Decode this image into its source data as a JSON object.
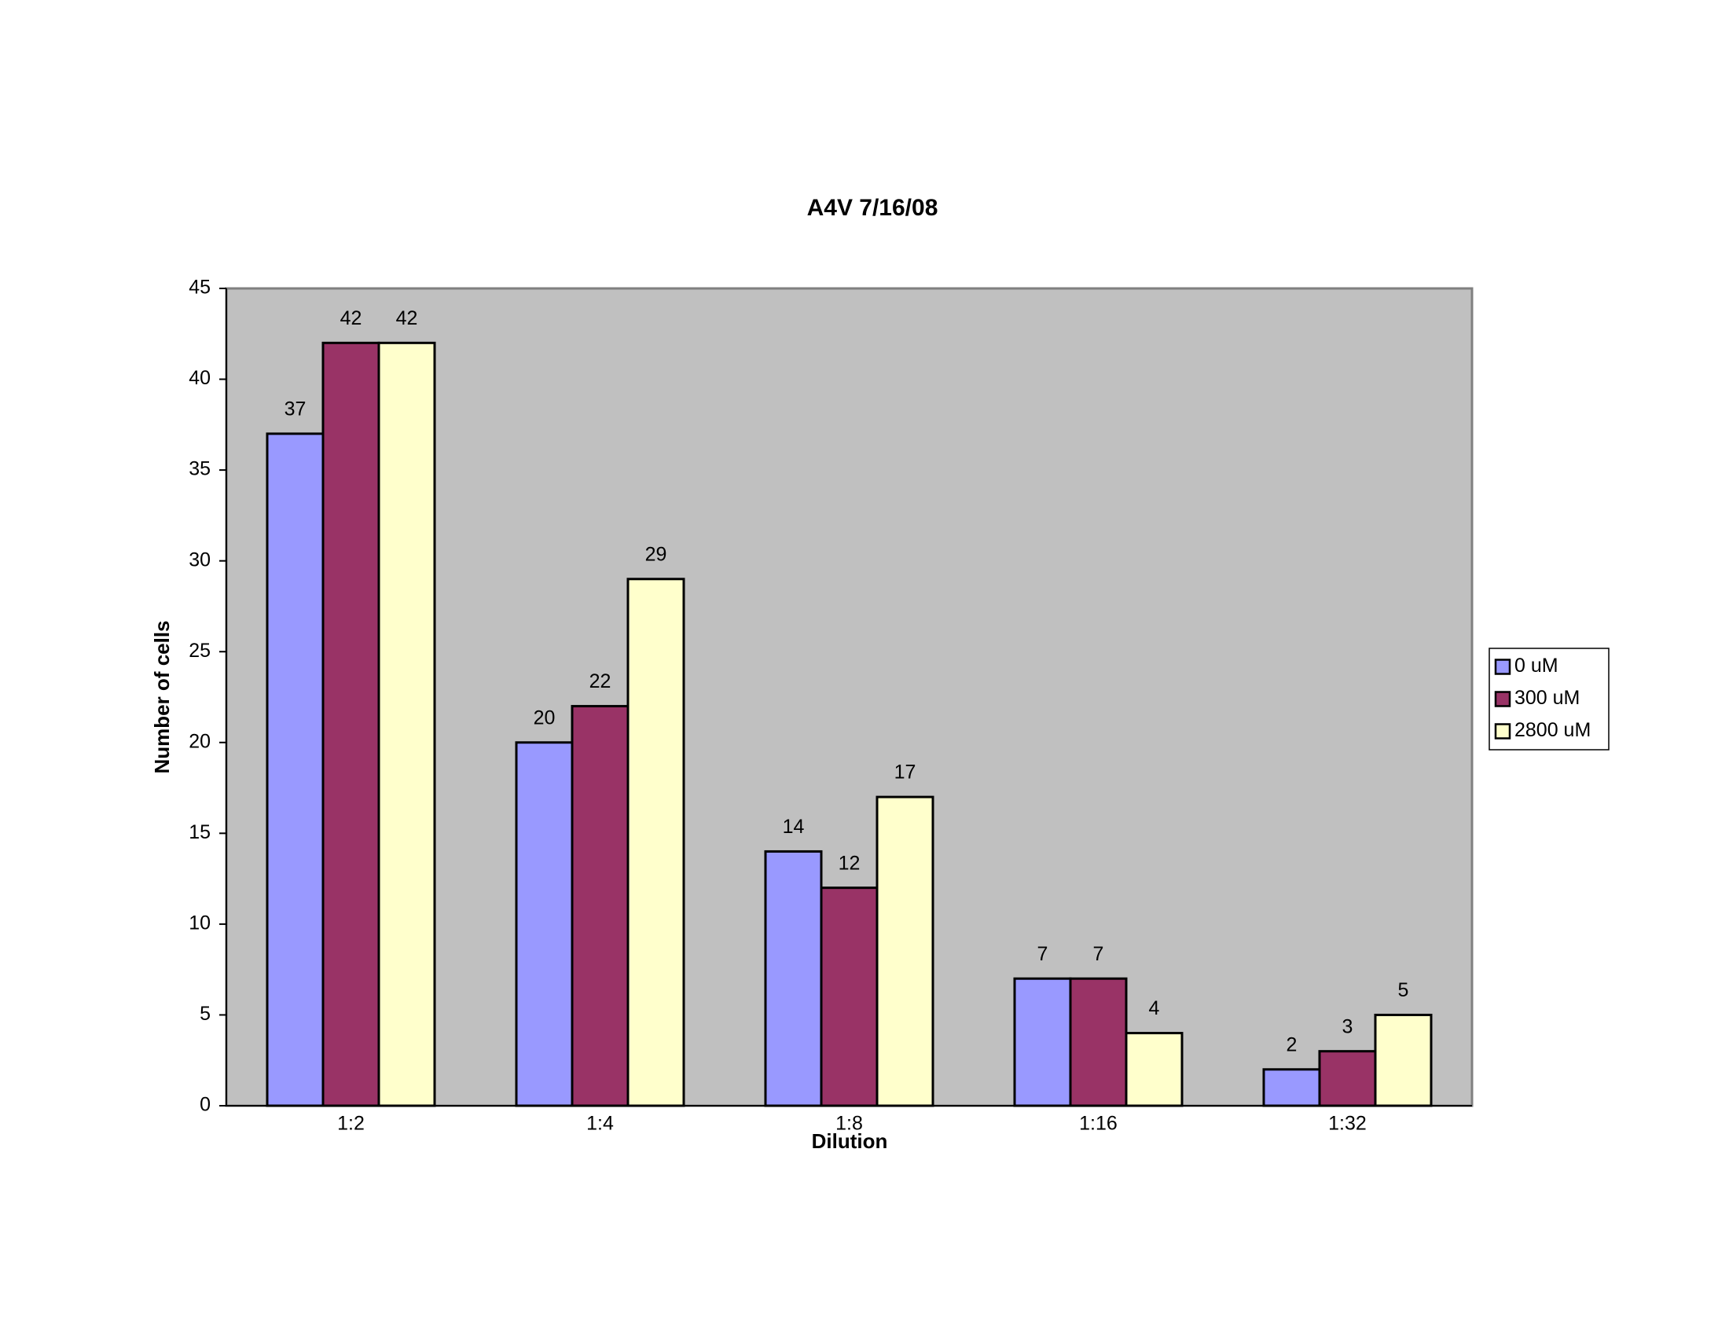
{
  "chart_data": {
    "type": "bar",
    "title": "A4V 7/16/08",
    "x_label": "Dilution",
    "y_label": "Number of cells",
    "categories": [
      "1:2",
      "1:4",
      "1:8",
      "1:16",
      "1:32"
    ],
    "series": [
      {
        "name": "0 uM",
        "color": "#9999ff",
        "values": [
          37,
          20,
          14,
          7,
          2
        ]
      },
      {
        "name": "300 uM",
        "color": "#993366",
        "values": [
          42,
          22,
          12,
          7,
          3
        ]
      },
      {
        "name": "2800 uM",
        "color": "#ffffcc",
        "values": [
          42,
          29,
          17,
          4,
          5
        ]
      }
    ],
    "ylim": [
      0,
      45
    ],
    "yticks": [
      0,
      5,
      10,
      15,
      20,
      25,
      30,
      35,
      40,
      45
    ],
    "grid": false,
    "legend": "right",
    "plot_background": "#c0c0c0"
  }
}
